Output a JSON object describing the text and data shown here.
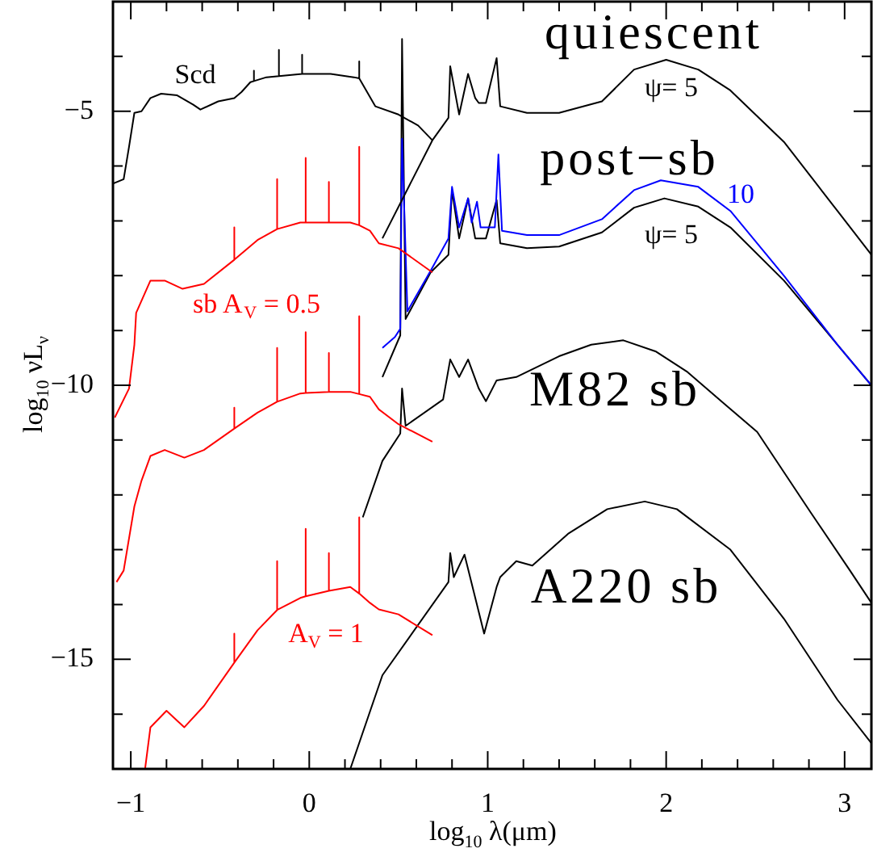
{
  "chart_data": {
    "type": "line",
    "xlabel": "log$_{10}$ λ(μm)",
    "ylabel": "log$_{10}$ νL$_{ν}$",
    "xlim": [
      -1.1,
      3.15
    ],
    "ylim": [
      -17,
      -3
    ],
    "xticks": [
      {
        "value": -1,
        "label": "−1"
      },
      {
        "value": -0.8,
        "label": null
      },
      {
        "value": -0.6,
        "label": null
      },
      {
        "value": -0.4,
        "label": null
      },
      {
        "value": -0.2,
        "label": null
      },
      0,
      {
        "value": 0.2,
        "label": null
      },
      {
        "value": 0.4,
        "label": null
      },
      {
        "value": 0.6,
        "label": null
      },
      {
        "value": 0.8,
        "label": null
      },
      1,
      {
        "value": 1.2,
        "label": null
      },
      {
        "value": 1.4,
        "label": null
      },
      {
        "value": 1.6,
        "label": null
      },
      {
        "value": 1.8,
        "label": null
      },
      2,
      {
        "value": 2.2,
        "label": null
      },
      {
        "value": 2.4,
        "label": null
      },
      {
        "value": 2.6,
        "label": null
      },
      {
        "value": 2.8,
        "label": null
      },
      3
    ],
    "yticks": [
      {
        "value": -16,
        "label": null
      },
      {
        "value": -15,
        "label": "−15"
      },
      {
        "value": -14,
        "label": null
      },
      {
        "value": -13,
        "label": null
      },
      {
        "value": -12,
        "label": null
      },
      {
        "value": -11,
        "label": null
      },
      {
        "value": -10,
        "label": "−10"
      },
      {
        "value": -9,
        "label": null
      },
      {
        "value": -8,
        "label": null
      },
      {
        "value": -7,
        "label": null
      },
      {
        "value": -6,
        "label": null
      },
      {
        "value": -5,
        "label": "−5"
      },
      {
        "value": -4,
        "label": null
      }
    ],
    "grid": false,
    "legend": false,
    "marker": "none",
    "line_style": "solid",
    "series": [
      {
        "name": "Scd",
        "color": "#000000",
        "x": [
          -1.1,
          -1.04,
          -1.01,
          -0.98,
          -0.94,
          -0.89,
          -0.83,
          -0.74,
          -0.65,
          -0.61,
          -0.51,
          -0.42,
          -0.38,
          -0.33,
          -0.31,
          -0.31,
          -0.31,
          -0.24,
          -0.17,
          -0.17,
          -0.17,
          -0.04,
          -0.04,
          -0.04,
          0.12,
          0.25,
          0.28,
          0.28,
          0.28,
          0.37,
          0.5,
          0.61,
          0.69
        ],
        "values": [
          -6.32,
          -6.24,
          -5.65,
          -5.03,
          -5.0,
          -4.76,
          -4.68,
          -4.71,
          -4.88,
          -4.97,
          -4.82,
          -4.76,
          -4.65,
          -4.47,
          -4.45,
          -4.26,
          -4.45,
          -4.38,
          -4.36,
          -3.88,
          -4.36,
          -4.32,
          -3.97,
          -4.32,
          -4.32,
          -4.38,
          -4.4,
          -4.09,
          -4.4,
          -4.91,
          -5.06,
          -5.26,
          -5.53
        ]
      },
      {
        "name": "ψ= 5",
        "color": "#000000",
        "x": [
          0.41,
          0.69,
          0.78,
          0.79,
          0.84,
          0.89,
          0.93,
          0.95,
          0.99,
          1.05,
          1.07,
          1.22,
          1.4,
          1.64,
          1.82,
          2.0,
          2.18,
          2.36,
          2.66,
          2.96,
          3.15
        ],
        "values": [
          -7.32,
          -5.53,
          -5.12,
          -4.18,
          -5.06,
          -4.32,
          -4.76,
          -4.85,
          -4.85,
          -4.03,
          -4.91,
          -5.03,
          -5.03,
          -4.82,
          -4.24,
          -4.06,
          -4.24,
          -4.62,
          -5.56,
          -6.82,
          -7.62
        ]
      },
      {
        "name": "sb A$_{V}$ = 0.5",
        "color": "#ff0000",
        "x": [
          -1.09,
          -1.01,
          -0.98,
          -0.97,
          -0.89,
          -0.81,
          -0.71,
          -0.59,
          -0.42,
          -0.42,
          -0.42,
          -0.29,
          -0.18,
          -0.18,
          -0.18,
          -0.05,
          -0.02,
          -0.02,
          -0.02,
          0.11,
          0.11,
          0.11,
          0.23,
          0.28,
          0.28,
          0.28,
          0.34,
          0.39,
          0.5,
          0.69
        ],
        "values": [
          -10.59,
          -10.06,
          -9.26,
          -8.68,
          -8.09,
          -8.09,
          -8.24,
          -8.15,
          -7.71,
          -7.12,
          -7.71,
          -7.35,
          -7.15,
          -6.24,
          -7.15,
          -7.03,
          -7.03,
          -5.85,
          -7.03,
          -7.03,
          -6.29,
          -7.03,
          -7.03,
          -7.08,
          -5.65,
          -7.08,
          -7.18,
          -7.41,
          -7.5,
          -7.94
        ]
      },
      {
        "name": "10",
        "color": "#0000ff",
        "x": [
          0.41,
          0.48,
          0.51,
          0.52,
          0.55,
          0.68,
          0.78,
          0.8,
          0.84,
          0.89,
          0.91,
          0.94,
          0.96,
          1.04,
          1.06,
          1.08,
          1.22,
          1.4,
          1.64,
          1.82,
          1.97,
          2.18,
          2.36,
          2.66,
          2.96,
          3.15
        ],
        "values": [
          -9.32,
          -9.12,
          -8.97,
          -5.5,
          -8.65,
          -7.91,
          -7.32,
          -6.38,
          -7.12,
          -6.59,
          -7.03,
          -6.65,
          -7.12,
          -7.12,
          -5.79,
          -7.18,
          -7.26,
          -7.26,
          -6.97,
          -6.44,
          -6.26,
          -6.38,
          -6.82,
          -8.0,
          -9.26,
          -10.0
        ]
      },
      {
        "name": "ψ= 5",
        "color": "#000000",
        "x": [
          0.41,
          0.51,
          0.52,
          0.54,
          0.68,
          0.78,
          0.8,
          0.84,
          0.89,
          0.93,
          0.99,
          1.05,
          1.07,
          1.22,
          1.4,
          1.64,
          1.82,
          1.99,
          2.18,
          2.36,
          2.66,
          2.96,
          3.15
        ],
        "values": [
          -9.85,
          -9.09,
          -3.68,
          -8.79,
          -7.94,
          -7.62,
          -6.44,
          -7.32,
          -6.59,
          -7.32,
          -7.32,
          -6.62,
          -7.41,
          -7.5,
          -7.47,
          -7.21,
          -6.76,
          -6.59,
          -6.74,
          -7.12,
          -8.09,
          -9.26,
          -10.0
        ]
      },
      {
        "color": "#ff0000",
        "x": [
          -1.08,
          -1.04,
          -0.98,
          -0.94,
          -0.89,
          -0.81,
          -0.7,
          -0.59,
          -0.42,
          -0.42,
          -0.42,
          -0.29,
          -0.18,
          -0.18,
          -0.18,
          -0.05,
          -0.02,
          -0.02,
          -0.02,
          0.11,
          0.11,
          0.11,
          0.23,
          0.28,
          0.28,
          0.28,
          0.34,
          0.39,
          0.5,
          0.69
        ],
        "values": [
          -13.59,
          -13.38,
          -12.21,
          -11.74,
          -11.29,
          -11.18,
          -11.32,
          -11.18,
          -10.79,
          -10.41,
          -10.79,
          -10.5,
          -10.3,
          -9.32,
          -10.3,
          -10.15,
          -10.14,
          -9.03,
          -10.14,
          -10.12,
          -9.41,
          -10.12,
          -10.12,
          -10.16,
          -8.74,
          -10.16,
          -10.21,
          -10.44,
          -10.71,
          -11.03
        ]
      },
      {
        "color": "#000000",
        "x": [
          0.3,
          0.41,
          0.51,
          0.52,
          0.54,
          0.75,
          0.79,
          0.84,
          0.89,
          0.95,
          0.99,
          1.05,
          1.16,
          1.4,
          1.58,
          1.76,
          1.94,
          2.12,
          2.33,
          2.51,
          2.81,
          3.03,
          3.15
        ],
        "values": [
          -12.41,
          -11.38,
          -10.88,
          -10.06,
          -10.74,
          -10.26,
          -9.53,
          -9.85,
          -9.53,
          -10.06,
          -10.29,
          -9.91,
          -9.85,
          -9.47,
          -9.26,
          -9.18,
          -9.38,
          -9.76,
          -10.35,
          -10.85,
          -12.32,
          -13.38,
          -13.97
        ]
      },
      {
        "name": "A$_{V}$ = 1",
        "color": "#ff0000",
        "x": [
          -0.92,
          -0.89,
          -0.8,
          -0.7,
          -0.59,
          -0.42,
          -0.42,
          -0.42,
          -0.29,
          -0.18,
          -0.18,
          -0.18,
          -0.05,
          -0.02,
          -0.02,
          -0.02,
          0.11,
          0.11,
          0.11,
          0.23,
          0.28,
          0.28,
          0.28,
          0.34,
          0.39,
          0.5,
          0.69
        ],
        "values": [
          -17.0,
          -16.24,
          -15.94,
          -16.24,
          -15.85,
          -15.06,
          -14.53,
          -15.06,
          -14.47,
          -14.1,
          -13.21,
          -14.1,
          -13.88,
          -13.85,
          -12.62,
          -13.85,
          -13.75,
          -13.06,
          -13.75,
          -13.68,
          -13.8,
          -12.41,
          -13.8,
          -13.97,
          -14.09,
          -14.18,
          -14.56
        ]
      },
      {
        "color": "#000000",
        "x": [
          0.23,
          0.41,
          0.78,
          0.79,
          0.81,
          0.87,
          0.98,
          1.05,
          1.07,
          1.16,
          1.25,
          1.45,
          1.67,
          1.88,
          2.06,
          2.36,
          2.66,
          2.96,
          3.15
        ],
        "values": [
          -17.0,
          -15.29,
          -13.59,
          -13.06,
          -13.5,
          -13.09,
          -14.53,
          -13.68,
          -13.5,
          -13.21,
          -13.29,
          -12.71,
          -12.26,
          -12.12,
          -12.26,
          -13.0,
          -14.26,
          -15.74,
          -16.53
        ]
      }
    ],
    "annotations": [
      "quiescent",
      "post−sb",
      "M82 sb",
      "A220 sb"
    ]
  }
}
